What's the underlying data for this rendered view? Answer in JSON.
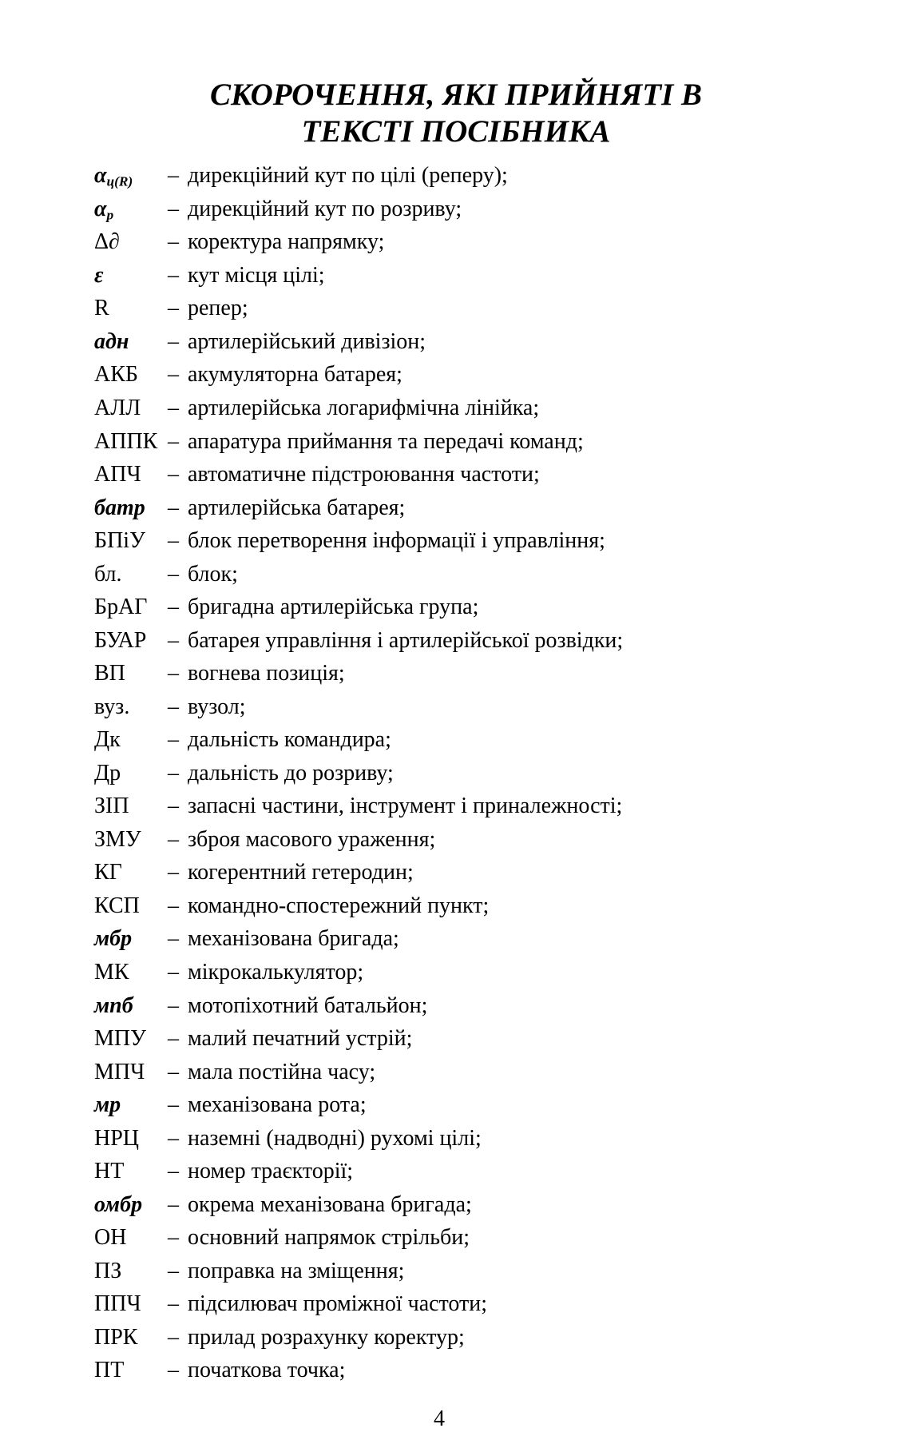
{
  "page": {
    "title_line1": "СКОРОЧЕННЯ, ЯКІ ПРИЙНЯТІ В",
    "title_line2": "ТЕКСТІ ПОСІБНИКА",
    "separator": "–",
    "page_number": "4"
  },
  "entries": [
    {
      "abbr": "α",
      "sub": "ц(R)",
      "bold": true,
      "def": "дирекційний кут по цілі (реперу);"
    },
    {
      "abbr": "α",
      "sub": "р",
      "bold": true,
      "def": "дирекційний кут по розриву;"
    },
    {
      "abbr": "Δ∂",
      "bold": false,
      "def": "коректура напрямку;"
    },
    {
      "abbr": "ε",
      "bold": true,
      "def": "кут місця цілі;"
    },
    {
      "abbr": "R",
      "bold": false,
      "def": "репер;"
    },
    {
      "abbr": "адн",
      "bold": true,
      "def": "артилерійський дивізіон;"
    },
    {
      "abbr": "АКБ",
      "bold": false,
      "def": "акумуляторна батарея;"
    },
    {
      "abbr": "АЛЛ",
      "bold": false,
      "def": "артилерійська логарифмічна лінійка;"
    },
    {
      "abbr": "АППК",
      "bold": false,
      "def": "апаратура приймання та передачі команд;"
    },
    {
      "abbr": "АПЧ",
      "bold": false,
      "def": "автоматичне підстроювання частоти;"
    },
    {
      "abbr": "батр",
      "bold": true,
      "def": "артилерійська батарея;"
    },
    {
      "abbr": "БПіУ",
      "bold": false,
      "def": "блок перетворення інформації і управління;"
    },
    {
      "abbr": "бл.",
      "bold": false,
      "def": "блок;"
    },
    {
      "abbr": "БрАГ",
      "bold": false,
      "def": "бригадна артилерійська група;"
    },
    {
      "abbr": "БУАР",
      "bold": false,
      "def": "батарея управління і артилерійської розвідки;"
    },
    {
      "abbr": "ВП",
      "bold": false,
      "def": "вогнева позиція;"
    },
    {
      "abbr": "вуз.",
      "bold": false,
      "def": "вузол;"
    },
    {
      "abbr": "Дк",
      "bold": false,
      "def": "дальність командира;"
    },
    {
      "abbr": "Др",
      "bold": false,
      "def": "дальність до розриву;"
    },
    {
      "abbr": "ЗІП",
      "bold": false,
      "def": "запасні частини, інструмент і приналежності;"
    },
    {
      "abbr": "ЗМУ",
      "bold": false,
      "def": "зброя масового ураження;"
    },
    {
      "abbr": "КГ",
      "bold": false,
      "def": "когерентний гетеродин;"
    },
    {
      "abbr": "КСП",
      "bold": false,
      "def": "командно-спостережний пункт;"
    },
    {
      "abbr": "мбр",
      "bold": true,
      "def": "механізована бригада;"
    },
    {
      "abbr": "МК",
      "bold": false,
      "def": "мікрокалькулятор;"
    },
    {
      "abbr": "мпб",
      "bold": true,
      "def": "мотопіхотний батальйон;"
    },
    {
      "abbr": "МПУ",
      "bold": false,
      "def": "малий печатний устрій;"
    },
    {
      "abbr": "МПЧ",
      "bold": false,
      "def": "мала постійна часу;"
    },
    {
      "abbr": "мр",
      "bold": true,
      "def": "механізована рота;"
    },
    {
      "abbr": "НРЦ",
      "bold": false,
      "def": "наземні (надводні) рухомі цілі;"
    },
    {
      "abbr": "НТ",
      "bold": false,
      "def": "номер траєкторії;"
    },
    {
      "abbr": "омбр",
      "bold": true,
      "def": "окрема механізована бригада;"
    },
    {
      "abbr": "ОН",
      "bold": false,
      "def": "основний напрямок стрільби;"
    },
    {
      "abbr": "ПЗ",
      "bold": false,
      "def": "поправка на зміщення;"
    },
    {
      "abbr": "ППЧ",
      "bold": false,
      "def": "підсилювач проміжної частоти;"
    },
    {
      "abbr": "ПРК",
      "bold": false,
      "def": "прилад розрахунку коректур;"
    },
    {
      "abbr": "ПТ",
      "bold": false,
      "def": "початкова точка;"
    }
  ]
}
